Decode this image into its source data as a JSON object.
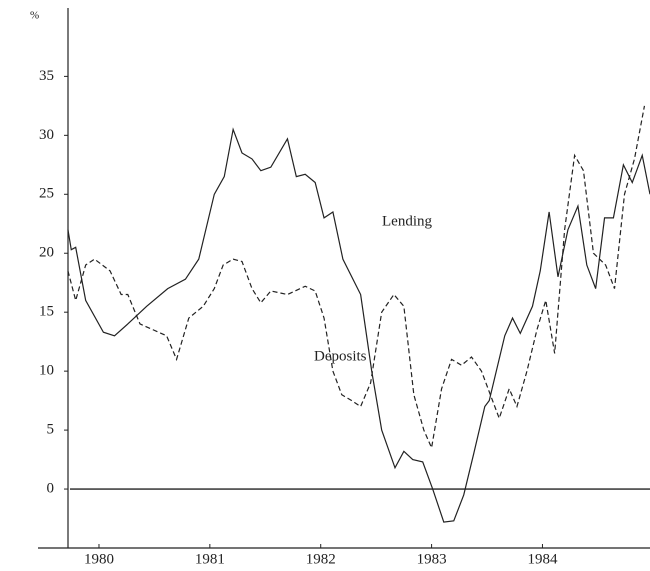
{
  "chart_data": {
    "type": "line",
    "y_unit_label": "%",
    "annotations": [
      "Lending",
      "Deposits"
    ],
    "xlim": [
      1979.45,
      1984.97
    ],
    "xticks": [
      1980,
      1981,
      1982,
      1983,
      1984
    ],
    "ylim": [
      -5,
      40.8
    ],
    "yticks": [
      0,
      5,
      10,
      15,
      20,
      25,
      30,
      35
    ],
    "series": [
      {
        "name": "Lending",
        "color": "#222222",
        "dash": "solid",
        "x": [
          1979.72,
          1979.75,
          1979.79,
          1979.88,
          1980.04,
          1980.14,
          1980.26,
          1980.43,
          1980.62,
          1980.78,
          1980.9,
          1981.04,
          1981.13,
          1981.21,
          1981.29,
          1981.38,
          1981.46,
          1981.55,
          1981.7,
          1981.78,
          1981.86,
          1981.95,
          1982.03,
          1982.11,
          1982.2,
          1982.36,
          1982.46,
          1982.55,
          1982.67,
          1982.75,
          1982.83,
          1982.92,
          1983.01,
          1983.11,
          1983.2,
          1983.29,
          1983.38,
          1983.48,
          1983.52,
          1983.66,
          1983.73,
          1983.8,
          1983.91,
          1983.98,
          1984.06,
          1984.14,
          1984.23,
          1984.32,
          1984.4,
          1984.48,
          1984.56,
          1984.64,
          1984.73,
          1984.81,
          1984.9,
          1984.97
        ],
        "values": [
          22,
          20.3,
          20.5,
          16,
          13.3,
          13,
          14,
          15.5,
          17,
          17.8,
          19.5,
          25,
          26.5,
          30.5,
          28.5,
          28,
          27,
          27.3,
          29.7,
          26.5,
          26.7,
          26,
          23,
          23.5,
          19.5,
          16.5,
          10,
          5,
          1.8,
          3.2,
          2.5,
          2.3,
          0,
          -2.8,
          -2.7,
          -0.5,
          3,
          7,
          7.5,
          13,
          14.5,
          13.2,
          15.5,
          18.5,
          23.5,
          18,
          22,
          24,
          19,
          17,
          23,
          23,
          27.5,
          26,
          28.3,
          25
        ]
      },
      {
        "name": "Deposits",
        "color": "#222222",
        "dash": "dashed",
        "x": [
          1979.72,
          1979.79,
          1979.88,
          1979.96,
          1980.1,
          1980.2,
          1980.26,
          1980.37,
          1980.49,
          1980.61,
          1980.7,
          1980.81,
          1980.94,
          1981.04,
          1981.12,
          1981.21,
          1981.29,
          1981.38,
          1981.46,
          1981.55,
          1981.7,
          1981.86,
          1981.95,
          1982.03,
          1982.11,
          1982.19,
          1982.28,
          1982.36,
          1982.45,
          1982.55,
          1982.66,
          1982.75,
          1982.84,
          1982.93,
          1983.0,
          1983.09,
          1983.18,
          1983.27,
          1983.36,
          1983.45,
          1983.55,
          1983.61,
          1983.7,
          1983.77,
          1983.86,
          1983.95,
          1984.03,
          1984.11,
          1984.2,
          1984.29,
          1984.37,
          1984.46,
          1984.57,
          1984.65,
          1984.74,
          1984.83,
          1984.92
        ],
        "values": [
          18.5,
          16,
          19,
          19.5,
          18.5,
          16.5,
          16.5,
          14,
          13.5,
          13,
          11,
          14.5,
          15.5,
          17,
          19,
          19.5,
          19.3,
          17,
          15.8,
          16.8,
          16.5,
          17.2,
          16.8,
          14.5,
          10,
          8,
          7.5,
          7,
          9,
          15,
          16.5,
          15.5,
          8,
          5,
          3.5,
          8.5,
          11,
          10.5,
          11.2,
          10,
          7.5,
          6,
          8.5,
          7,
          10,
          13.5,
          16,
          11.5,
          22,
          28.3,
          27,
          20,
          19,
          17,
          25,
          28,
          32.5
        ]
      }
    ]
  }
}
